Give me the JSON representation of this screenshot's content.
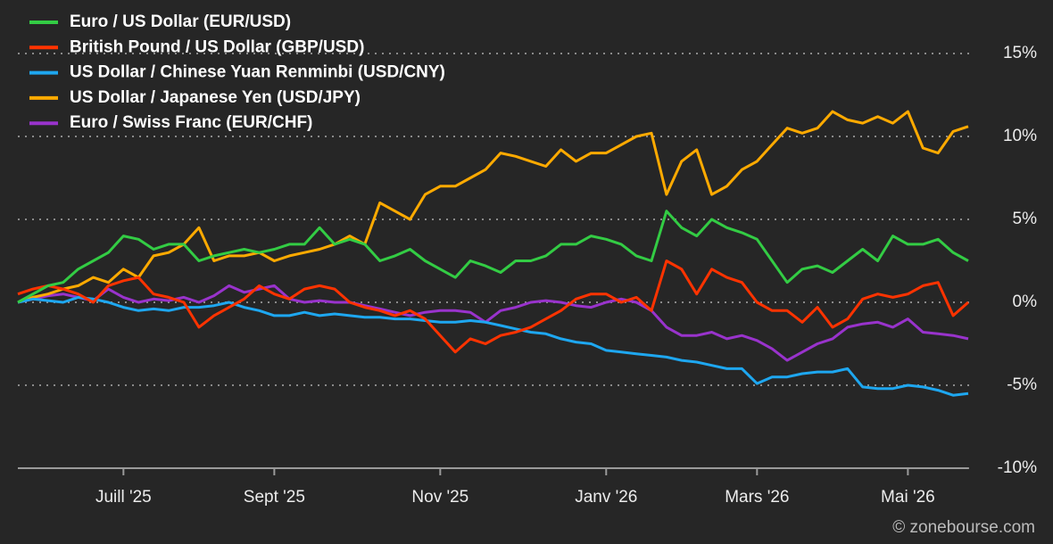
{
  "chart_data": {
    "type": "line",
    "categories": [
      null,
      null,
      null,
      null,
      null,
      null,
      null,
      "Juill '25",
      null,
      null,
      null,
      null,
      null,
      null,
      null,
      null,
      null,
      "Sept '25",
      null,
      null,
      null,
      null,
      null,
      null,
      null,
      null,
      null,
      null,
      "Nov '25",
      null,
      null,
      null,
      null,
      null,
      null,
      null,
      null,
      null,
      null,
      "Janv '26",
      null,
      null,
      null,
      null,
      null,
      null,
      null,
      null,
      null,
      "Mars '26",
      null,
      null,
      null,
      null,
      null,
      null,
      null,
      null,
      null,
      "Mai '26",
      null,
      null,
      null,
      null
    ],
    "series": [
      {
        "name": "Euro / US Dollar (EUR/USD)",
        "color": "#33cc44",
        "values": [
          0,
          0.5,
          1,
          1.2,
          2,
          2.5,
          3,
          4,
          3.8,
          3.2,
          3.5,
          3.5,
          2.5,
          2.8,
          3,
          3.2,
          3,
          3.2,
          3.5,
          3.5,
          4.5,
          3.5,
          3.8,
          3.5,
          2.5,
          2.8,
          3.2,
          2.5,
          2,
          1.5,
          2.5,
          2.2,
          1.8,
          2.5,
          2.5,
          2.8,
          3.5,
          3.5,
          4,
          3.8,
          3.5,
          2.8,
          2.5,
          5.5,
          4.5,
          4,
          5,
          4.5,
          4.2,
          3.8,
          2.5,
          1.2,
          2,
          2.2,
          1.8,
          2.5,
          3.2,
          2.5,
          4,
          3.5,
          3.5,
          3.8,
          3,
          2.5
        ]
      },
      {
        "name": "British Pound / US Dollar (GBP/USD)",
        "color": "#ff3300",
        "values": [
          0.5,
          0.8,
          1,
          0.8,
          0.5,
          0,
          1,
          1.3,
          1.5,
          0.5,
          0.3,
          0,
          -1.5,
          -0.8,
          -0.3,
          0.2,
          1,
          0.5,
          0.2,
          0.8,
          1,
          0.8,
          0,
          -0.3,
          -0.5,
          -0.8,
          -0.5,
          -1,
          -2,
          -3,
          -2.2,
          -2.5,
          -2,
          -1.8,
          -1.5,
          -1,
          -0.5,
          0.2,
          0.5,
          0.5,
          0,
          0.3,
          -0.5,
          2.5,
          2,
          0.5,
          2,
          1.5,
          1.2,
          0,
          -0.5,
          -0.5,
          -1.2,
          -0.3,
          -1.5,
          -1,
          0.2,
          0.5,
          0.3,
          0.5,
          1,
          1.2,
          -0.8,
          0
        ]
      },
      {
        "name": "US Dollar / Chinese Yuan Renminbi (USD/CNY)",
        "color": "#1ea7f0",
        "values": [
          0,
          0.2,
          0.1,
          0,
          0.3,
          0.2,
          0,
          -0.3,
          -0.5,
          -0.4,
          -0.5,
          -0.3,
          -0.3,
          -0.2,
          0,
          -0.3,
          -0.5,
          -0.8,
          -0.8,
          -0.6,
          -0.8,
          -0.7,
          -0.8,
          -0.9,
          -0.9,
          -1,
          -1,
          -1.1,
          -1.2,
          -1.2,
          -1.1,
          -1.2,
          -1.4,
          -1.6,
          -1.8,
          -1.9,
          -2.2,
          -2.4,
          -2.5,
          -2.9,
          -3,
          -3.1,
          -3.2,
          -3.3,
          -3.5,
          -3.6,
          -3.8,
          -4,
          -4,
          -4.9,
          -4.5,
          -4.5,
          -4.3,
          -4.2,
          -4.2,
          -4,
          -5.1,
          -5.2,
          -5.2,
          -5,
          -5.1,
          -5.3,
          -5.6,
          -5.5
        ]
      },
      {
        "name": "US Dollar / Japanese Yen (USD/JPY)",
        "color": "#ffaa00",
        "values": [
          0,
          0.3,
          0.5,
          0.8,
          1,
          1.5,
          1.2,
          2,
          1.5,
          2.8,
          3,
          3.5,
          4.5,
          2.5,
          2.8,
          2.8,
          3,
          2.5,
          2.8,
          3,
          3.2,
          3.5,
          4,
          3.5,
          6,
          5.5,
          5,
          6.5,
          7,
          7,
          7.5,
          8,
          9,
          8.8,
          8.5,
          8.2,
          9.2,
          8.5,
          9,
          9,
          9.5,
          10,
          10.2,
          6.5,
          8.5,
          9.2,
          6.5,
          7,
          8,
          8.5,
          9.5,
          10.5,
          10.2,
          10.5,
          11.5,
          11,
          10.8,
          11.2,
          10.8,
          11.5,
          9.3,
          9,
          10.3,
          10.6
        ]
      },
      {
        "name": "Euro / Swiss Franc (EUR/CHF)",
        "color": "#9933cc",
        "values": [
          0,
          0.2,
          0.4,
          0.5,
          0.3,
          0.1,
          0.8,
          0.3,
          0,
          0.2,
          0.1,
          0.3,
          0,
          0.4,
          1,
          0.6,
          0.8,
          1,
          0.2,
          0,
          0.1,
          0,
          0,
          -0.2,
          -0.4,
          -0.6,
          -0.8,
          -0.6,
          -0.5,
          -0.5,
          -0.6,
          -1.2,
          -0.5,
          -0.3,
          0,
          0.1,
          0,
          -0.2,
          -0.3,
          0,
          0.2,
          0,
          -0.5,
          -1.5,
          -2,
          -2,
          -1.8,
          -2.2,
          -2,
          -2.3,
          -2.8,
          -3.5,
          -3,
          -2.5,
          -2.2,
          -1.5,
          -1.3,
          -1.2,
          -1.5,
          -1,
          -1.8,
          -1.9,
          -2,
          -2.2
        ]
      }
    ],
    "ylim": [
      -10,
      17.5
    ],
    "yticks": [
      {
        "value": -10,
        "label": "-10%"
      },
      {
        "value": -5,
        "label": "-5%"
      },
      {
        "value": 0,
        "label": "0%"
      },
      {
        "value": 5,
        "label": "5%"
      },
      {
        "value": 10,
        "label": "10%"
      },
      {
        "value": 15,
        "label": "15%"
      }
    ],
    "grid": true,
    "legend": "top-left",
    "source": "© zonebourse.com"
  }
}
